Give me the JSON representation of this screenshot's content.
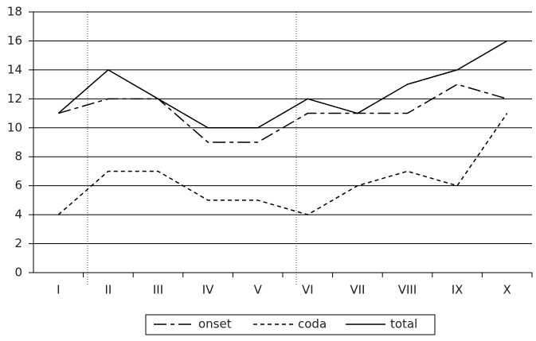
{
  "chart_data": {
    "type": "line",
    "categories": [
      "I",
      "II",
      "III",
      "IV",
      "V",
      "VI",
      "VII",
      "VIII",
      "IX",
      "X"
    ],
    "series": [
      {
        "name": "onset",
        "color": "#000000",
        "values": [
          11,
          12,
          12,
          9,
          9,
          11,
          11,
          11,
          13,
          12
        ]
      },
      {
        "name": "coda",
        "color": "#000000",
        "values": [
          4,
          7,
          7,
          5,
          5,
          4,
          6,
          7,
          6,
          11
        ]
      },
      {
        "name": "total",
        "color": "#000000",
        "values": [
          11,
          14,
          12,
          10,
          10,
          12,
          11,
          13,
          14,
          16
        ]
      }
    ],
    "ylim": [
      0,
      18
    ],
    "yticks": [
      0,
      2,
      4,
      6,
      8,
      10,
      12,
      14,
      16,
      18
    ],
    "grid": true,
    "legend": "bottom"
  }
}
